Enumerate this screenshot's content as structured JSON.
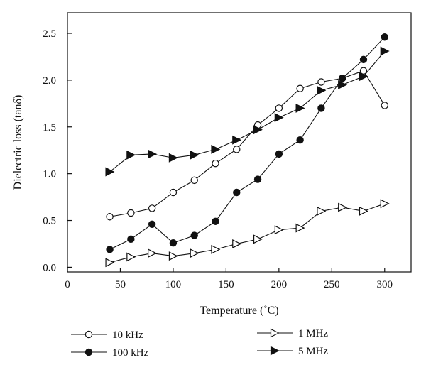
{
  "chart_data": {
    "type": "line",
    "title": "",
    "xlabel": "Temperature (˚C)",
    "ylabel": "Dielectric loss (tanδ)",
    "xlim": [
      0,
      325
    ],
    "ylim": [
      -0.05,
      2.72
    ],
    "xticks": [
      0,
      50,
      100,
      150,
      200,
      250,
      300
    ],
    "yticks": [
      0.0,
      0.5,
      1.0,
      1.5,
      2.0,
      2.5
    ],
    "xtick_labels": [
      "0",
      "50",
      "100",
      "150",
      "200",
      "250",
      "300"
    ],
    "ytick_labels": [
      "0.0",
      "0.5",
      "1.0",
      "1.5",
      "2.0",
      "2.5"
    ],
    "grid": false,
    "legend_position": "bottom",
    "x": [
      40,
      60,
      80,
      100,
      120,
      140,
      160,
      180,
      200,
      220,
      240,
      260,
      280,
      300
    ],
    "series": [
      {
        "name": "10 kHz",
        "marker": "circle-open",
        "values": [
          0.54,
          0.58,
          0.63,
          0.8,
          0.93,
          1.11,
          1.26,
          1.52,
          1.7,
          1.91,
          1.98,
          2.02,
          2.1,
          1.73
        ]
      },
      {
        "name": "100 kHz",
        "marker": "circle-filled",
        "values": [
          0.19,
          0.3,
          0.46,
          0.26,
          0.34,
          0.49,
          0.8,
          0.94,
          1.21,
          1.36,
          1.7,
          2.02,
          2.22,
          2.46
        ]
      },
      {
        "name": "1 MHz",
        "marker": "triangle-open",
        "values": [
          0.05,
          0.11,
          0.15,
          0.12,
          0.15,
          0.19,
          0.25,
          0.3,
          0.4,
          0.42,
          0.6,
          0.64,
          0.6,
          0.68
        ]
      },
      {
        "name": "5 MHz",
        "marker": "triangle-filled",
        "values": [
          1.02,
          1.2,
          1.21,
          1.17,
          1.2,
          1.26,
          1.36,
          1.47,
          1.6,
          1.7,
          1.89,
          1.95,
          2.04,
          2.31
        ]
      }
    ]
  }
}
